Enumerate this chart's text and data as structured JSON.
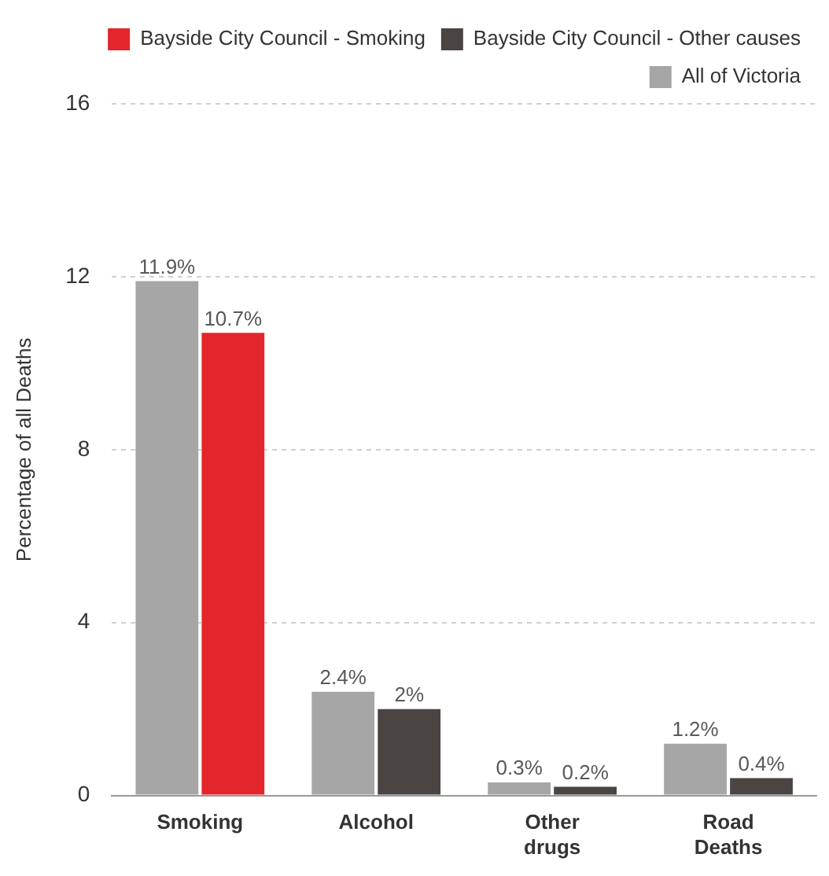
{
  "chart_data": {
    "type": "bar",
    "ylabel": "Percentage of all Deaths",
    "categories": [
      "Smoking",
      "Alcohol",
      "Other drugs",
      "Road Deaths"
    ],
    "series": [
      {
        "name": "Bayside City Council - Smoking",
        "color": "#e2262b",
        "values": [
          10.7,
          null,
          null,
          null
        ],
        "value_labels": [
          "10.7%",
          null,
          null,
          null
        ]
      },
      {
        "name": "Bayside City Council - Other causes",
        "color": "#4a4542",
        "values": [
          null,
          2,
          0.2,
          0.4
        ],
        "value_labels": [
          null,
          "2%",
          "0.2%",
          "0.4%"
        ]
      },
      {
        "name": "All of Victoria",
        "color": "#a6a6a6",
        "values": [
          11.9,
          2.4,
          0.3,
          1.2
        ],
        "value_labels": [
          "11.9%",
          "2.4%",
          "0.3%",
          "1.2%"
        ]
      }
    ],
    "ylim": [
      0,
      16
    ],
    "yticks": [
      0,
      4,
      8,
      12,
      16
    ],
    "grid": "y",
    "legend": "top right"
  }
}
